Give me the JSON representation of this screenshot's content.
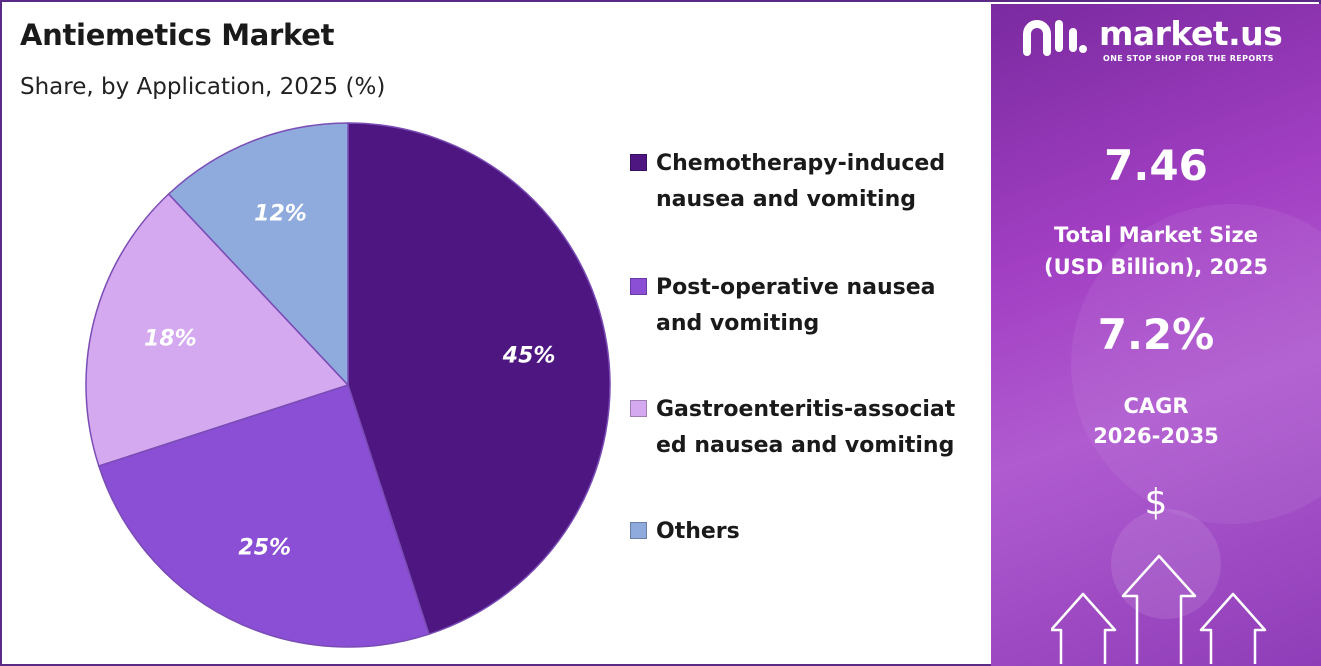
{
  "header": {
    "title": "Antiemetics Market",
    "subtitle": "Share, by Application, 2025 (%)"
  },
  "chart_data": {
    "type": "pie",
    "title": "Antiemetics Market",
    "subtitle": "Share, by Application, 2025 (%)",
    "slices": [
      {
        "label": "Chemotherapy-induced nausea and vomiting",
        "legend_lines": [
          "Chemotherapy-induced",
          "nausea and vomiting"
        ],
        "value": 45,
        "display": "45%",
        "color": "#4e1681"
      },
      {
        "label": "Post-operative nausea and vomiting",
        "legend_lines": [
          "Post-operative nausea",
          "and vomiting"
        ],
        "value": 25,
        "display": "25%",
        "color": "#8a4fd4"
      },
      {
        "label": "Gastroenteritis-associated nausea and vomiting",
        "legend_lines": [
          "Gastroenteritis-associat",
          "ed nausea and vomiting"
        ],
        "value": 18,
        "display": "18%",
        "color": "#d4a9ef"
      },
      {
        "label": "Others",
        "legend_lines": [
          "Others"
        ],
        "value": 12,
        "display": "12%",
        "color": "#8faadd"
      }
    ],
    "start_angle_deg": 0,
    "direction": "clockwise",
    "legend_position": "right"
  },
  "sidebar": {
    "brand": "market.us",
    "tagline": "ONE STOP SHOP FOR THE REPORTS",
    "market_size_value": "7.46",
    "market_size_label_line1": "Total Market Size",
    "market_size_label_line2": "(USD Billion), 2025",
    "cagr_value": "7.2%",
    "cagr_label_line1": "CAGR",
    "cagr_label_line2": "2026-2035",
    "currency_symbol": "$"
  },
  "colors": {
    "accent": "#5b2a86",
    "sidebar_bg": "#9a3cc0"
  }
}
